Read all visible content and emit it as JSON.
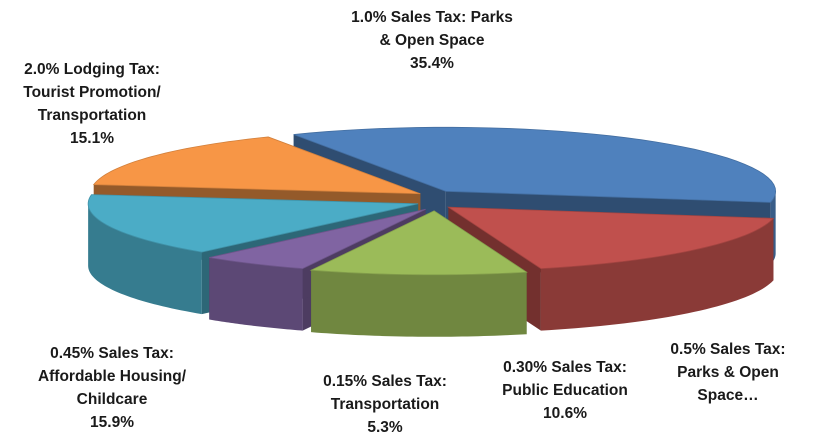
{
  "chart_data": {
    "type": "pie",
    "categories": [
      "1.0% Sales Tax: Parks\n& Open Space",
      "0.5% Sales Tax:\nParks & Open\nSpace…",
      "0.30% Sales Tax:\nPublic Education",
      "0.15% Sales Tax:\nTransportation",
      "0.45% Sales Tax:\nAffordable Housing/\nChildcare",
      "2.0% Lodging Tax:\nTourist Promotion/\nTransportation"
    ],
    "values": [
      35.4,
      17.7,
      10.6,
      5.3,
      15.9,
      15.1
    ],
    "value_labels": [
      "35.4%",
      null,
      "10.6%",
      "5.3%",
      "15.9%",
      "15.1%"
    ],
    "colors": [
      "#4f81bd",
      "#c0504d",
      "#9bbb59",
      "#8064a2",
      "#4bacc6",
      "#f79646"
    ]
  }
}
